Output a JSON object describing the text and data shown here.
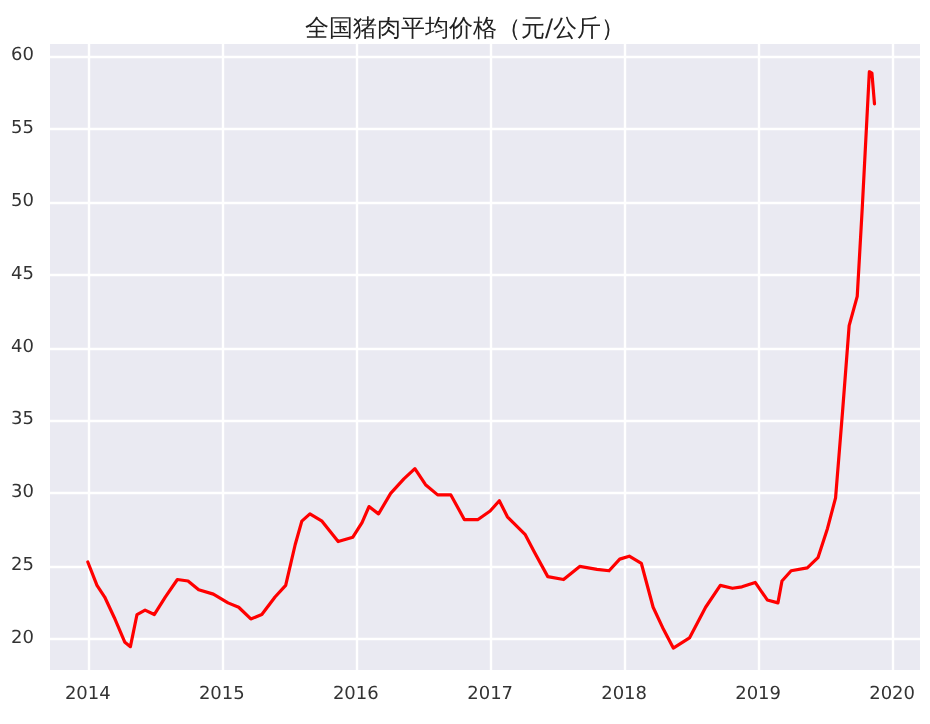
{
  "chart_data": {
    "type": "line",
    "title": "全国猪肉平均价格（元/公斤）",
    "x": [
      "2014-01-01",
      "2014-01-26",
      "2014-02-16",
      "2014-03-14",
      "2014-04-12",
      "2014-04-27",
      "2014-05-15",
      "2014-06-06",
      "2014-07-01",
      "2014-07-31",
      "2014-09-02",
      "2014-10-01",
      "2014-10-30",
      "2014-12-09",
      "2015-01-18",
      "2015-02-16",
      "2015-03-21",
      "2015-04-20",
      "2015-05-26",
      "2015-06-24",
      "2015-07-20",
      "2015-08-07",
      "2015-08-29",
      "2015-10-01",
      "2015-11-14",
      "2015-12-24",
      "2016-01-18",
      "2016-02-06",
      "2016-03-03",
      "2016-04-05",
      "2016-05-11",
      "2016-06-10",
      "2016-07-09",
      "2016-08-11",
      "2016-09-16",
      "2016-10-23",
      "2016-11-28",
      "2017-01-01",
      "2017-01-26",
      "2017-02-17",
      "2017-04-06",
      "2017-05-01",
      "2017-06-07",
      "2017-07-20",
      "2017-09-02",
      "2017-10-19",
      "2017-11-21",
      "2017-12-20",
      "2018-01-15",
      "2018-02-17",
      "2018-03-21",
      "2018-04-16",
      "2018-05-15",
      "2018-06-28",
      "2018-08-11",
      "2018-09-20",
      "2018-10-23",
      "2018-11-18",
      "2018-12-24",
      "2019-01-26",
      "2019-02-24",
      "2019-03-07",
      "2019-04-01",
      "2019-05-15",
      "2019-06-13",
      "2019-07-09",
      "2019-07-31",
      "2019-08-19",
      "2019-09-06",
      "2019-09-28",
      "2019-10-12",
      "2019-10-31",
      "2019-11-07",
      "2019-11-14"
    ],
    "series": [
      {
        "color": "#ff0000",
        "values": [
          25.3,
          23.7,
          22.9,
          21.5,
          19.8,
          19.5,
          21.7,
          22.0,
          21.7,
          22.9,
          24.1,
          24.0,
          23.4,
          23.1,
          22.5,
          22.2,
          21.4,
          21.7,
          22.9,
          23.7,
          26.5,
          28.1,
          28.6,
          28.1,
          26.7,
          27.0,
          28.0,
          29.1,
          28.6,
          30.0,
          31.0,
          31.7,
          30.6,
          29.9,
          29.9,
          28.2,
          28.2,
          28.8,
          29.5,
          28.4,
          27.2,
          26.0,
          24.3,
          24.1,
          25.0,
          24.8,
          24.7,
          25.5,
          25.7,
          25.2,
          22.2,
          20.8,
          19.4,
          20.1,
          22.2,
          23.7,
          23.5,
          23.6,
          23.9,
          22.7,
          22.5,
          24.0,
          24.7,
          24.9,
          25.6,
          27.6,
          29.7,
          35.6,
          41.5,
          43.5,
          49.7,
          58.9,
          58.8,
          56.7
        ]
      }
    ],
    "xlim": [
      "2013-09-20",
      "2020-03-17"
    ],
    "xticks": [
      {
        "value": "2014-01-01",
        "label": "2014"
      },
      {
        "value": "2015-01-01",
        "label": "2015"
      },
      {
        "value": "2016-01-01",
        "label": "2016"
      },
      {
        "value": "2017-01-01",
        "label": "2017"
      },
      {
        "value": "2018-01-01",
        "label": "2018"
      },
      {
        "value": "2019-01-01",
        "label": "2019"
      },
      {
        "value": "2020-01-01",
        "label": "2020"
      }
    ],
    "ylim": [
      17.9,
      60.8
    ],
    "yticks": [
      20,
      25,
      30,
      35,
      40,
      45,
      50,
      55,
      60
    ],
    "grid": true,
    "marker": "none",
    "line_style": "solid"
  }
}
